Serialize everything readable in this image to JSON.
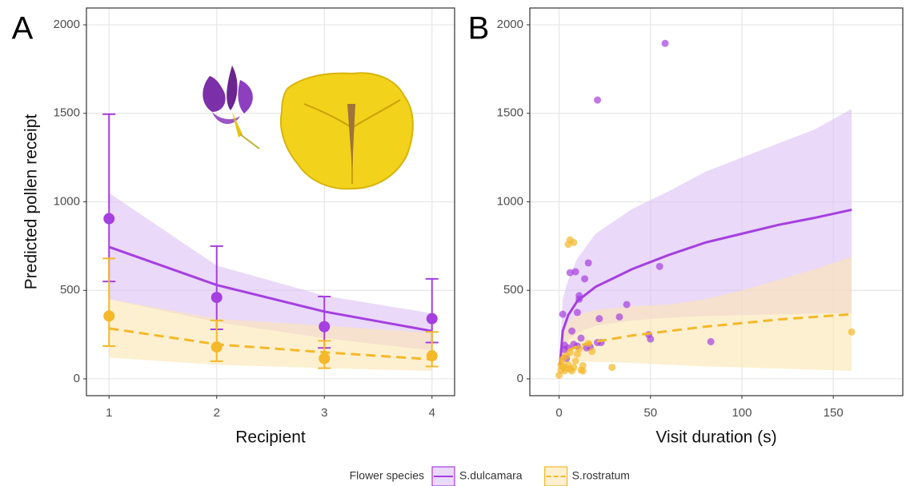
{
  "chart_data": [
    {
      "type": "line",
      "panel_label": "A",
      "xlabel": "Recipient",
      "ylabel": "Predicted pollen receipt",
      "legend_title": "Flower species",
      "legend_position": "bottom",
      "grid": true,
      "x": [
        1,
        2,
        3,
        4
      ],
      "xlim": [
        0.79,
        4.21
      ],
      "xticks": [
        1,
        2,
        3,
        4
      ],
      "ylim": [
        -95,
        2095
      ],
      "yticks": [
        0,
        500,
        1000,
        1500,
        2000
      ],
      "series": [
        {
          "name": "S.dulcamara",
          "color": "#a53fe0",
          "band_color": "#dcbff5",
          "dashed": false,
          "values": [
            905,
            460,
            295,
            340
          ],
          "lower": [
            550,
            280,
            175,
            205
          ],
          "upper": [
            1495,
            750,
            465,
            565
          ],
          "fit": [
            745,
            530,
            380,
            270
          ],
          "fit_lower": [
            450,
            320,
            230,
            160
          ],
          "fit_upper": [
            1050,
            640,
            470,
            370
          ]
        },
        {
          "name": "S.rostratum",
          "color": "#f4b829",
          "band_color": "#fbe6b0",
          "dashed": true,
          "values": [
            355,
            180,
            115,
            130
          ],
          "lower": [
            185,
            100,
            60,
            70
          ],
          "upper": [
            680,
            330,
            215,
            265
          ],
          "fit": [
            285,
            195,
            150,
            110
          ],
          "fit_lower": [
            120,
            80,
            60,
            45
          ],
          "fit_upper": [
            450,
            340,
            300,
            260
          ]
        }
      ]
    },
    {
      "type": "scatter",
      "panel_label": "B",
      "xlabel": "Visit duration (s)",
      "grid": true,
      "xlim": [
        -16,
        188
      ],
      "xticks": [
        0,
        50,
        100,
        150
      ],
      "ylim": [
        -95,
        2095
      ],
      "yticks": [
        0,
        500,
        1000,
        1500,
        2000
      ],
      "series": [
        {
          "name": "S.dulcamara",
          "color": "#a53fe0",
          "band_color": "#dcbff5",
          "dashed": false,
          "x": [
            58,
            21,
            6,
            9,
            16,
            11,
            11,
            14,
            2,
            55,
            37,
            10,
            33,
            22,
            5,
            3,
            7,
            12,
            21,
            15,
            17,
            23,
            49,
            50,
            83,
            8,
            10,
            4,
            3
          ],
          "values": [
            1895,
            1575,
            600,
            605,
            655,
            470,
            450,
            565,
            365,
            635,
            420,
            375,
            350,
            340,
            175,
            165,
            270,
            230,
            205,
            175,
            180,
            205,
            250,
            225,
            210,
            195,
            185,
            115,
            190
          ],
          "fit_x": [
            0.5,
            2,
            5,
            10,
            20,
            40,
            60,
            80,
            100,
            120,
            140,
            160
          ],
          "fit": [
            80,
            270,
            360,
            440,
            520,
            620,
            700,
            770,
            820,
            870,
            910,
            955
          ],
          "fit_lower": [
            40,
            150,
            220,
            260,
            300,
            330,
            345,
            355,
            360,
            365,
            368,
            372
          ],
          "fit_upper": [
            150,
            450,
            560,
            680,
            820,
            960,
            1060,
            1170,
            1250,
            1330,
            1410,
            1525
          ]
        },
        {
          "name": "S.rostratum",
          "color": "#f4b829",
          "band_color": "#fbe6b0",
          "dashed": true,
          "x": [
            5,
            6,
            8,
            0,
            1,
            2,
            3,
            4,
            5,
            6,
            7,
            8,
            12,
            13,
            13,
            10,
            11,
            16,
            18,
            29,
            160,
            2,
            4,
            6,
            9,
            1
          ],
          "values": [
            760,
            785,
            770,
            20,
            50,
            70,
            45,
            60,
            80,
            55,
            45,
            65,
            50,
            75,
            45,
            140,
            170,
            200,
            155,
            65,
            265,
            110,
            130,
            150,
            100,
            80
          ],
          "fit_x": [
            0.5,
            2,
            5,
            10,
            20,
            40,
            60,
            80,
            100,
            120,
            140,
            160
          ],
          "fit": [
            90,
            130,
            160,
            185,
            210,
            245,
            270,
            295,
            315,
            335,
            350,
            365
          ],
          "fit_lower": [
            40,
            80,
            100,
            100,
            95,
            90,
            80,
            70,
            65,
            58,
            52,
            45
          ],
          "fit_upper": [
            150,
            250,
            320,
            360,
            390,
            410,
            420,
            450,
            500,
            560,
            620,
            690
          ]
        }
      ]
    }
  ]
}
